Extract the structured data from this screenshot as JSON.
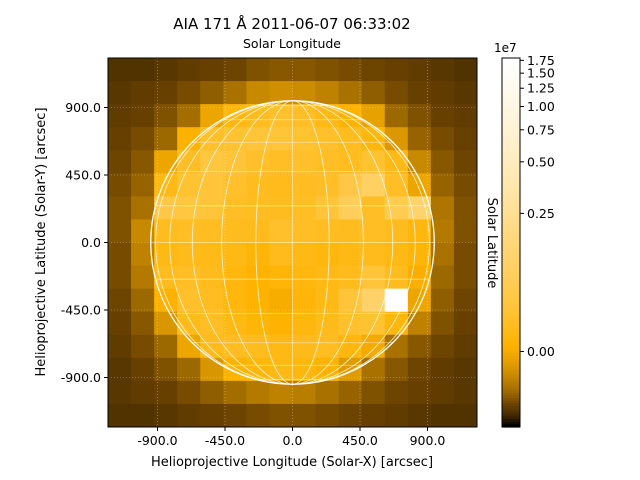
{
  "chart_data": {
    "type": "heatmap",
    "title": "AIA 171 Å 2011-06-07 06:33:02",
    "top_axis_label": "Solar Longitude",
    "right_axis_label": "Solar Latitude",
    "xlabel": "Helioprojective Longitude (Solar-X) [arcsec]",
    "ylabel": "Helioprojective Latitude (Solar-Y) [arcsec]",
    "xlim": [
      -1230,
      1230
    ],
    "ylim": [
      -1230,
      1230
    ],
    "x_ticks": [
      -900.0,
      -450.0,
      0.0,
      450.0,
      900.0
    ],
    "x_tick_labels": [
      "-900.0",
      "-450.0",
      "0.0",
      "450.0",
      "900.0"
    ],
    "y_ticks": [
      -900.0,
      -450.0,
      0.0,
      450.0,
      900.0
    ],
    "y_tick_labels": [
      "-900.0",
      "-450.0",
      "0.0",
      "450.0",
      "900.0"
    ],
    "grid": true,
    "solar_radius_arcsec": 945,
    "colorbar": {
      "multiplier_label": "1e7",
      "ticks": [
        0.0,
        0.25,
        0.5,
        0.75,
        1.0,
        1.25,
        1.5,
        1.75
      ],
      "tick_labels": [
        "0.00",
        "0.25",
        "0.50",
        "0.75",
        "1.00",
        "1.25",
        "1.50",
        "1.75"
      ],
      "range": [
        -0.05,
        1.8
      ],
      "scale": "asinh"
    },
    "colors": {
      "c0": "#000000",
      "c1": "#6b4300",
      "c2": "#ffb300",
      "c3": "#ffd980",
      "c4": "#ffffff"
    },
    "grid_shape": [
      16,
      16
    ],
    "values": [
      [
        0.02,
        0.02,
        0.03,
        0.04,
        0.05,
        0.06,
        0.08,
        0.09,
        0.09,
        0.08,
        0.07,
        0.06,
        0.05,
        0.04,
        0.03,
        0.02
      ],
      [
        0.03,
        0.04,
        0.05,
        0.07,
        0.1,
        0.14,
        0.2,
        0.22,
        0.21,
        0.18,
        0.14,
        0.1,
        0.07,
        0.05,
        0.04,
        0.03
      ],
      [
        0.04,
        0.05,
        0.08,
        0.13,
        0.3,
        0.4,
        0.45,
        0.5,
        0.48,
        0.42,
        0.36,
        0.28,
        0.12,
        0.08,
        0.05,
        0.04
      ],
      [
        0.05,
        0.07,
        0.12,
        0.35,
        0.5,
        0.52,
        0.55,
        0.55,
        0.52,
        0.5,
        0.45,
        0.4,
        0.25,
        0.11,
        0.07,
        0.05
      ],
      [
        0.06,
        0.09,
        0.3,
        0.48,
        0.58,
        0.55,
        0.5,
        0.48,
        0.5,
        0.48,
        0.45,
        0.52,
        0.42,
        0.2,
        0.09,
        0.06
      ],
      [
        0.07,
        0.11,
        0.42,
        0.52,
        0.55,
        0.5,
        0.45,
        0.44,
        0.46,
        0.48,
        0.6,
        0.75,
        0.48,
        0.3,
        0.11,
        0.07
      ],
      [
        0.08,
        0.14,
        0.6,
        0.58,
        0.55,
        0.48,
        0.46,
        0.45,
        0.47,
        0.55,
        0.7,
        0.48,
        0.65,
        0.8,
        0.15,
        0.08
      ],
      [
        0.08,
        0.2,
        0.45,
        0.48,
        0.46,
        0.45,
        0.44,
        0.5,
        0.48,
        0.46,
        0.45,
        0.47,
        0.45,
        0.4,
        0.16,
        0.08
      ],
      [
        0.07,
        0.18,
        0.42,
        0.44,
        0.43,
        0.42,
        0.38,
        0.44,
        0.42,
        0.4,
        0.42,
        0.44,
        0.42,
        0.38,
        0.14,
        0.07
      ],
      [
        0.07,
        0.16,
        0.45,
        0.48,
        0.44,
        0.4,
        0.36,
        0.38,
        0.4,
        0.42,
        0.44,
        0.55,
        0.45,
        0.34,
        0.12,
        0.07
      ],
      [
        0.06,
        0.12,
        0.35,
        0.5,
        0.46,
        0.4,
        0.36,
        0.33,
        0.38,
        0.42,
        0.55,
        0.78,
        1.8,
        0.3,
        0.1,
        0.06
      ],
      [
        0.05,
        0.09,
        0.24,
        0.44,
        0.48,
        0.42,
        0.38,
        0.36,
        0.4,
        0.44,
        0.5,
        0.52,
        0.4,
        0.18,
        0.08,
        0.05
      ],
      [
        0.04,
        0.07,
        0.12,
        0.3,
        0.44,
        0.46,
        0.45,
        0.42,
        0.44,
        0.46,
        0.4,
        0.32,
        0.14,
        0.09,
        0.06,
        0.04
      ],
      [
        0.03,
        0.05,
        0.08,
        0.12,
        0.24,
        0.36,
        0.4,
        0.42,
        0.4,
        0.36,
        0.26,
        0.14,
        0.09,
        0.06,
        0.04,
        0.03
      ],
      [
        0.03,
        0.04,
        0.05,
        0.07,
        0.1,
        0.13,
        0.16,
        0.18,
        0.17,
        0.14,
        0.11,
        0.08,
        0.06,
        0.05,
        0.04,
        0.03
      ],
      [
        0.02,
        0.02,
        0.03,
        0.04,
        0.05,
        0.06,
        0.07,
        0.08,
        0.08,
        0.07,
        0.06,
        0.05,
        0.04,
        0.03,
        0.02,
        0.02
      ]
    ]
  }
}
